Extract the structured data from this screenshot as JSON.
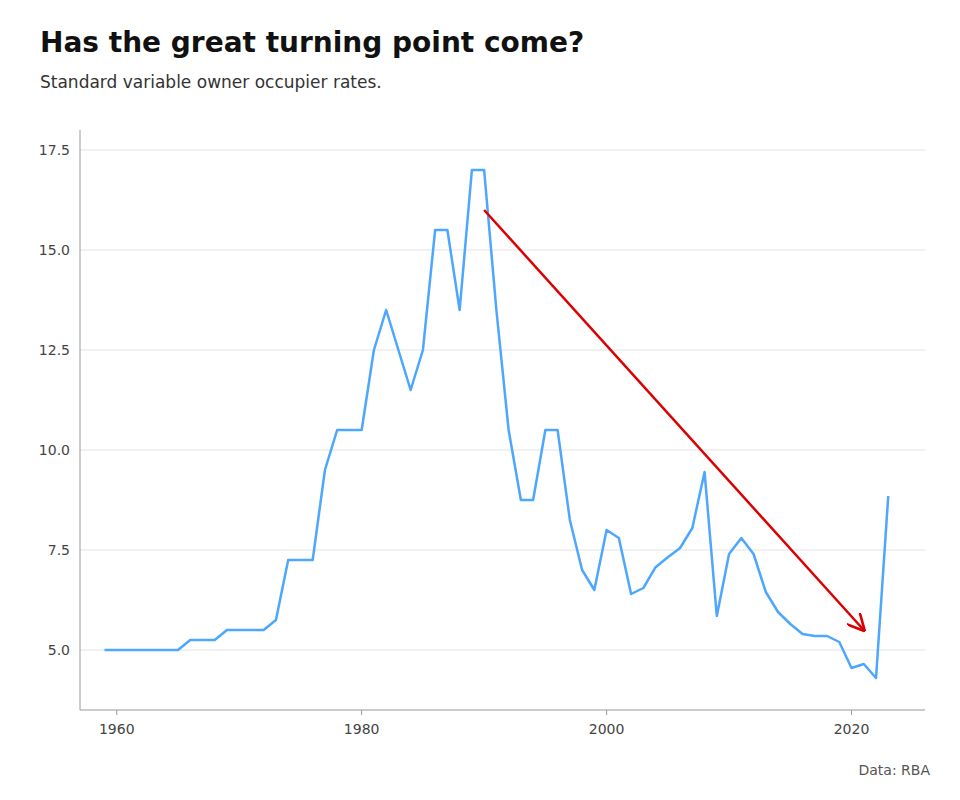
{
  "chart_data": {
    "type": "line",
    "title": "Has the great turning point come?",
    "subtitle": "Standard variable owner occupier rates.",
    "source": "Data: RBA",
    "color": "#4DA6FF",
    "x": [
      1959,
      1960,
      1961,
      1962,
      1963,
      1964,
      1965,
      1966,
      1967,
      1968,
      1969,
      1970,
      1971,
      1972,
      1973,
      1974,
      1975,
      1976,
      1977,
      1978,
      1979,
      1980,
      1981,
      1982,
      1983,
      1984,
      1985,
      1986,
      1987,
      1988,
      1989,
      1990,
      1991,
      1992,
      1993,
      1994,
      1995,
      1996,
      1997,
      1998,
      1999,
      2000,
      2001,
      2002,
      2003,
      2004,
      2005,
      2006,
      2007,
      2008,
      2009,
      2010,
      2011,
      2012,
      2013,
      2014,
      2015,
      2016,
      2017,
      2018,
      2019,
      2020,
      2021,
      2022,
      2023
    ],
    "values": [
      5.0,
      5.0,
      5.0,
      5.0,
      5.0,
      5.0,
      5.0,
      5.25,
      5.25,
      5.25,
      5.5,
      5.5,
      5.5,
      5.5,
      5.75,
      7.25,
      7.25,
      7.25,
      9.5,
      10.5,
      10.5,
      10.5,
      12.5,
      13.5,
      12.5,
      11.5,
      12.5,
      15.5,
      15.5,
      13.5,
      17.0,
      17.0,
      13.5,
      10.5,
      8.75,
      8.75,
      10.5,
      10.5,
      8.25,
      7.0,
      6.5,
      8.0,
      7.8,
      6.4,
      6.55,
      7.07,
      7.32,
      7.55,
      8.05,
      9.45,
      5.85,
      7.4,
      7.8,
      7.4,
      6.45,
      5.95,
      5.65,
      5.4,
      5.35,
      5.35,
      5.2,
      4.55,
      4.65,
      4.3,
      8.85
    ],
    "xlim": [
      1957,
      2026
    ],
    "ylim": [
      3.5,
      18.0
    ],
    "xticks": [
      1960,
      1980,
      2000,
      2020
    ],
    "yticks": [
      {
        "value": 5.0,
        "label": "5.0"
      },
      7.5,
      {
        "value": 10.0,
        "label": "10.0"
      },
      12.5,
      {
        "value": 15.0,
        "label": "15.0"
      },
      17.5
    ],
    "grid": true,
    "annotations": [
      {
        "x": 1990,
        "y": 16.0,
        "x_end": 2021,
        "y_end": 5.5,
        "color": "#DD0000"
      }
    ]
  }
}
